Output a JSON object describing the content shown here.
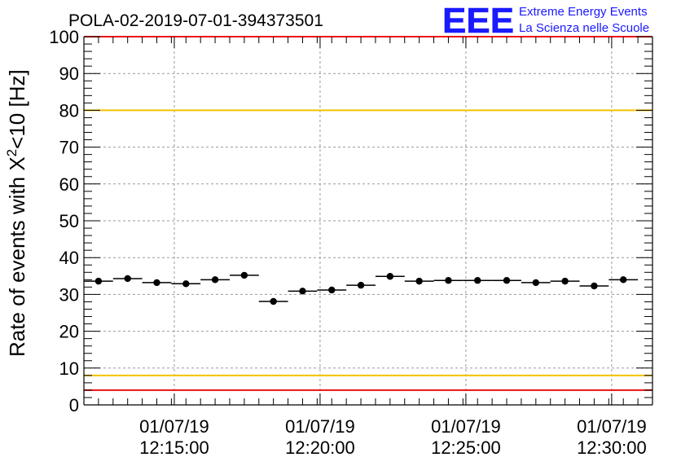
{
  "chart_data": {
    "type": "scatter",
    "title": "POLA-02-2019-07-01-394373501",
    "ylabel_main": "Rate of events with X",
    "ylabel_sup": "2",
    "ylabel_rest": "<10 [Hz]",
    "xlabel": "",
    "ylim": [
      0,
      100
    ],
    "xlim": [
      "2019-07-01T12:11:54",
      "2019-07-01T12:31:24"
    ],
    "grid": true,
    "y_ticks": [
      0,
      10,
      20,
      30,
      40,
      50,
      60,
      70,
      80,
      90,
      100
    ],
    "x_ticks": [
      {
        "date": "01/07/19",
        "time": "12:15:00",
        "value": "2019-07-01T12:15:00"
      },
      {
        "date": "01/07/19",
        "time": "12:20:00",
        "value": "2019-07-01T12:20:00"
      },
      {
        "date": "01/07/19",
        "time": "12:25:00",
        "value": "2019-07-01T12:25:00"
      },
      {
        "date": "01/07/19",
        "time": "12:30:00",
        "value": "2019-07-01T12:30:00"
      }
    ],
    "reference_lines": [
      {
        "y": 80,
        "color": "#f2c200"
      },
      {
        "y": 8,
        "color": "#f2c200"
      },
      {
        "y": 4,
        "color": "#ee1111"
      }
    ],
    "frame_top_color": "#ee1111",
    "series": [
      {
        "bin_width": "1 min",
        "points": [
          {
            "x": "2019-07-01T12:12:24",
            "y": 33.6
          },
          {
            "x": "2019-07-01T12:13:24",
            "y": 34.3
          },
          {
            "x": "2019-07-01T12:14:24",
            "y": 33.2
          },
          {
            "x": "2019-07-01T12:15:24",
            "y": 32.9
          },
          {
            "x": "2019-07-01T12:16:24",
            "y": 34.0
          },
          {
            "x": "2019-07-01T12:17:24",
            "y": 35.2
          },
          {
            "x": "2019-07-01T12:18:24",
            "y": 28.1
          },
          {
            "x": "2019-07-01T12:19:24",
            "y": 30.9
          },
          {
            "x": "2019-07-01T12:20:24",
            "y": 31.2
          },
          {
            "x": "2019-07-01T12:21:24",
            "y": 32.5
          },
          {
            "x": "2019-07-01T12:22:24",
            "y": 34.9
          },
          {
            "x": "2019-07-01T12:23:24",
            "y": 33.6
          },
          {
            "x": "2019-07-01T12:24:24",
            "y": 33.8
          },
          {
            "x": "2019-07-01T12:25:24",
            "y": 33.8
          },
          {
            "x": "2019-07-01T12:26:24",
            "y": 33.8
          },
          {
            "x": "2019-07-01T12:27:24",
            "y": 33.2
          },
          {
            "x": "2019-07-01T12:28:24",
            "y": 33.6
          },
          {
            "x": "2019-07-01T12:29:24",
            "y": 32.3
          },
          {
            "x": "2019-07-01T12:30:24",
            "y": 34.0
          }
        ]
      }
    ]
  },
  "logo": {
    "mark": "EEE",
    "line1": "Extreme Energy Events",
    "line2": "La Scienza nelle Scuole",
    "color": "#1a1aff"
  }
}
